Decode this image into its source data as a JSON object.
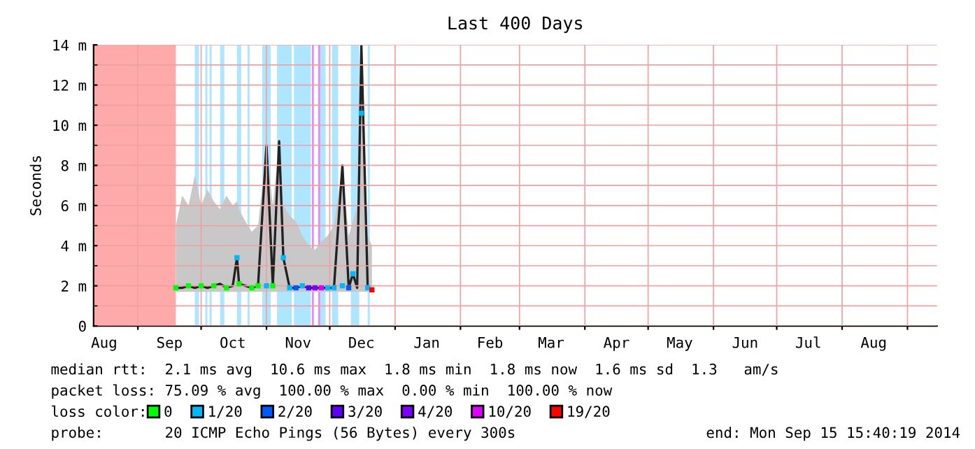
{
  "chart_data": {
    "type": "line",
    "title": "Last 400 Days",
    "ylabel": "Seconds",
    "xlim": [
      "2013-08-11",
      "2014-09-15"
    ],
    "xticks": [
      {
        "value": "2013-08-16",
        "label": "Aug"
      },
      {
        "value": "2013-09-01",
        "label": null
      },
      {
        "value": "2013-09-16",
        "label": "Sep"
      },
      {
        "value": "2013-10-01",
        "label": null
      },
      {
        "value": "2013-10-16",
        "label": "Oct"
      },
      {
        "value": "2013-11-01",
        "label": null
      },
      {
        "value": "2013-11-16",
        "label": "Nov"
      },
      {
        "value": "2013-12-01",
        "label": null
      },
      {
        "value": "2013-12-16",
        "label": "Dec"
      },
      {
        "value": "2014-01-01",
        "label": null
      },
      {
        "value": "2014-01-16",
        "label": "Jan"
      },
      {
        "value": "2014-02-01",
        "label": null
      },
      {
        "value": "2014-02-15",
        "label": "Feb"
      },
      {
        "value": "2014-03-01",
        "label": null
      },
      {
        "value": "2014-03-16",
        "label": "Mar"
      },
      {
        "value": "2014-04-01",
        "label": null
      },
      {
        "value": "2014-04-16",
        "label": "Apr"
      },
      {
        "value": "2014-05-01",
        "label": null
      },
      {
        "value": "2014-05-16",
        "label": "May"
      },
      {
        "value": "2014-06-01",
        "label": null
      },
      {
        "value": "2014-06-16",
        "label": "Jun"
      },
      {
        "value": "2014-07-01",
        "label": null
      },
      {
        "value": "2014-07-16",
        "label": "Jul"
      },
      {
        "value": "2014-08-01",
        "label": null
      },
      {
        "value": "2014-08-16",
        "label": "Aug"
      },
      {
        "value": "2014-09-01",
        "label": null
      }
    ],
    "ylim": [
      0,
      14
    ],
    "yticks": [
      {
        "value": 0,
        "label": "0"
      },
      {
        "value": 1,
        "label": null
      },
      {
        "value": 2,
        "label": "2 m"
      },
      {
        "value": 3,
        "label": null
      },
      {
        "value": 4,
        "label": "4 m"
      },
      {
        "value": 5,
        "label": null
      },
      {
        "value": 6,
        "label": "6 m"
      },
      {
        "value": 7,
        "label": null
      },
      {
        "value": 8,
        "label": "8 m"
      },
      {
        "value": 9,
        "label": null
      },
      {
        "value": 10,
        "label": "10 m"
      },
      {
        "value": 11,
        "label": null
      },
      {
        "value": 12,
        "label": "12 m"
      },
      {
        "value": 13,
        "label": null
      },
      {
        "value": 14,
        "label": "14 m"
      }
    ],
    "grid": true,
    "legend": "bottom",
    "legend_title": "loss color:",
    "bands": [
      {
        "axis": "x",
        "from": "2013-08-11",
        "to": "2013-09-19",
        "color": "#ffaaaa"
      },
      {
        "axis": "x",
        "from": "2013-09-28",
        "to": "2013-09-30",
        "color": "#aee6ff"
      },
      {
        "axis": "x",
        "from": "2013-10-03",
        "to": "2013-10-04",
        "color": "#aee6ff"
      },
      {
        "axis": "x",
        "from": "2013-10-05",
        "to": "2013-10-06",
        "color": "#aee6ff"
      },
      {
        "axis": "x",
        "from": "2013-10-10",
        "to": "2013-10-12",
        "color": "#aee6ff"
      },
      {
        "axis": "x",
        "from": "2013-10-18",
        "to": "2013-10-20",
        "color": "#aee6ff"
      },
      {
        "axis": "x",
        "from": "2013-10-23",
        "to": "2013-10-24",
        "color": "#aee6ff"
      },
      {
        "axis": "x",
        "from": "2013-10-30",
        "to": "2013-11-03",
        "color": "#aee6ff"
      },
      {
        "axis": "x",
        "from": "2013-11-06",
        "to": "2013-11-13",
        "color": "#aee6ff"
      },
      {
        "axis": "x",
        "from": "2013-11-14",
        "to": "2013-11-22",
        "color": "#aee6ff"
      },
      {
        "axis": "x",
        "from": "2013-11-26",
        "to": "2013-11-29",
        "color": "#aee6ff"
      },
      {
        "axis": "x",
        "from": "2013-12-02",
        "to": "2013-12-05",
        "color": "#aee6ff"
      },
      {
        "axis": "x",
        "from": "2013-12-11",
        "to": "2013-12-15",
        "color": "#aee6ff"
      },
      {
        "axis": "x",
        "from": "2013-12-19",
        "to": "2013-12-20",
        "color": "#aee6ff"
      }
    ],
    "ref_lines": [
      {
        "axis": "x",
        "value": "2013-11-23",
        "color": "#ee88ee"
      },
      {
        "axis": "x",
        "value": "2013-11-26",
        "color": "#ee88ee"
      }
    ],
    "series": [
      {
        "color": "#222222",
        "x": [
          "2013-09-19",
          "2013-09-22",
          "2013-09-25",
          "2013-09-28",
          "2013-10-01",
          "2013-10-04",
          "2013-10-07",
          "2013-10-10",
          "2013-10-13",
          "2013-10-16",
          "2013-10-18",
          "2013-10-19",
          "2013-10-22",
          "2013-10-25",
          "2013-10-28",
          "2013-11-01",
          "2013-11-04",
          "2013-11-07",
          "2013-11-09",
          "2013-11-12",
          "2013-11-15",
          "2013-11-18",
          "2013-11-21",
          "2013-11-24",
          "2013-11-27",
          "2013-11-30",
          "2013-12-03",
          "2013-12-07",
          "2013-12-10",
          "2013-12-12",
          "2013-12-14",
          "2013-12-16",
          "2013-12-19",
          "2013-12-21"
        ],
        "values": [
          1.9,
          1.9,
          2.0,
          1.9,
          2.0,
          1.9,
          2.0,
          2.1,
          1.9,
          2.0,
          3.4,
          2.1,
          2.0,
          1.9,
          2.0,
          9.0,
          2.0,
          9.2,
          3.4,
          1.9,
          1.9,
          2.0,
          1.9,
          1.9,
          1.9,
          1.9,
          1.9,
          8.0,
          1.9,
          2.6,
          1.9,
          14,
          1.9,
          1.8
        ],
        "lower": [
          1.7,
          1.7,
          1.7,
          1.7,
          1.7,
          1.7,
          1.7,
          1.7,
          1.7,
          1.7,
          1.7,
          1.7,
          1.7,
          1.7,
          1.7,
          1.7,
          1.7,
          1.7,
          1.7,
          1.7,
          1.7,
          1.7,
          1.7,
          1.7,
          1.7,
          1.7,
          1.7,
          1.7,
          1.7,
          1.7,
          1.7,
          1.7,
          1.7,
          1.7
        ],
        "upper": [
          5.0,
          6.5,
          6.0,
          7.5,
          6.0,
          6.8,
          6.2,
          5.8,
          6.5,
          6.0,
          6.2,
          5.8,
          5.2,
          4.7,
          5.0,
          9.0,
          6.0,
          9.2,
          6.0,
          5.5,
          5.2,
          4.5,
          4.0,
          3.8,
          4.2,
          4.5,
          5.0,
          8.0,
          4.5,
          5.2,
          6.0,
          14,
          4.5,
          4.0
        ]
      },
      {
        "type": "scatter",
        "name": "0",
        "color": "#00ff00",
        "x": [
          "2013-09-19",
          "2013-09-25",
          "2013-10-01",
          "2013-10-07",
          "2013-10-13",
          "2013-10-19",
          "2013-10-25",
          "2013-10-28",
          "2013-11-04"
        ],
        "values": [
          1.9,
          2.0,
          2.0,
          2.0,
          1.9,
          2.1,
          1.9,
          2.0,
          2.0
        ]
      },
      {
        "type": "scatter",
        "name": "1/20",
        "color": "#00b8ff",
        "x": [
          "2013-10-18",
          "2013-11-01",
          "2013-11-09",
          "2013-11-12",
          "2013-11-18",
          "2013-11-30",
          "2013-12-03",
          "2013-12-07",
          "2013-12-12",
          "2013-12-16",
          "2013-12-19"
        ],
        "values": [
          3.4,
          2.0,
          3.4,
          1.9,
          2.0,
          1.9,
          1.9,
          2.0,
          2.6,
          10.6,
          1.9
        ]
      },
      {
        "type": "scatter",
        "name": "2/20",
        "color": "#0059ff",
        "x": [
          "2013-11-15",
          "2013-12-10"
        ],
        "values": [
          1.9,
          1.9
        ]
      },
      {
        "type": "scatter",
        "name": "3/20",
        "color": "#5e00ff",
        "x": [
          "2013-11-21"
        ],
        "values": [
          1.9
        ]
      },
      {
        "type": "scatter",
        "name": "4/20",
        "color": "#7e00ff",
        "x": [
          "2013-11-24"
        ],
        "values": [
          1.9
        ]
      },
      {
        "type": "scatter",
        "name": "10/20",
        "color": "#dd00ff",
        "x": [
          "2013-11-27"
        ],
        "values": [
          1.9
        ]
      },
      {
        "type": "scatter",
        "name": "19/20",
        "color": "#ff0000",
        "x": [
          "2013-12-21"
        ],
        "values": [
          1.8
        ]
      }
    ],
    "annotations": [
      "median rtt:  2.1 ms avg  10.6 ms max  1.8 ms min  1.8 ms now  1.6 ms sd  1.3   am/s",
      "packet loss: 75.09 % avg  100.00 % max  0.00 % min  100.00 % now",
      "probe:       20 ICMP Echo Pings (56 Bytes) every 300s",
      "end: Mon Sep 15 15:40:19 2014"
    ]
  }
}
